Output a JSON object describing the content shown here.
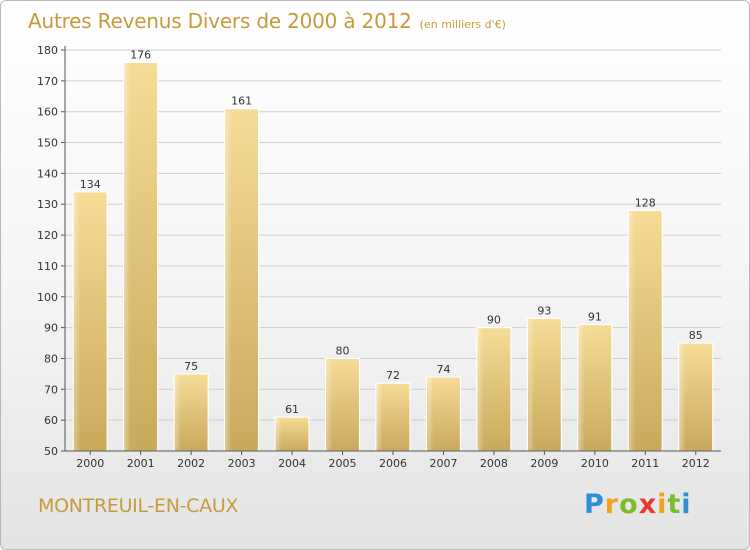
{
  "header": {
    "title": "Autres Revenus Divers de 2000 à 2012",
    "subtitle": "(en milliers d'€)"
  },
  "footer": {
    "commune": "MONTREUIL-EN-CAUX",
    "logo": {
      "letters": [
        "P",
        "r",
        "o",
        "x",
        "i",
        "t",
        "i"
      ],
      "colors": [
        "#2e8fd6",
        "#f0a31c",
        "#7dbb2f",
        "#e33b34",
        "#f0a31c",
        "#7dbb2f",
        "#2e8fd6"
      ]
    }
  },
  "chart_data": {
    "type": "bar",
    "categories": [
      "2000",
      "2001",
      "2002",
      "2003",
      "2004",
      "2005",
      "2006",
      "2007",
      "2008",
      "2009",
      "2010",
      "2011",
      "2012"
    ],
    "values": [
      134,
      176,
      75,
      161,
      61,
      80,
      72,
      74,
      90,
      93,
      91,
      128,
      85
    ],
    "title": "Autres Revenus Divers de 2000 à 2012",
    "xlabel": "",
    "ylabel": "",
    "ylim": [
      50,
      180
    ],
    "yticks": [
      50,
      60,
      70,
      80,
      90,
      100,
      110,
      120,
      130,
      140,
      150,
      160,
      170,
      180
    ],
    "grid": true,
    "colors": {
      "bar_light": "#f6dc97",
      "bar_dark": "#c9a95c",
      "grid": "#cfcfcf"
    }
  }
}
